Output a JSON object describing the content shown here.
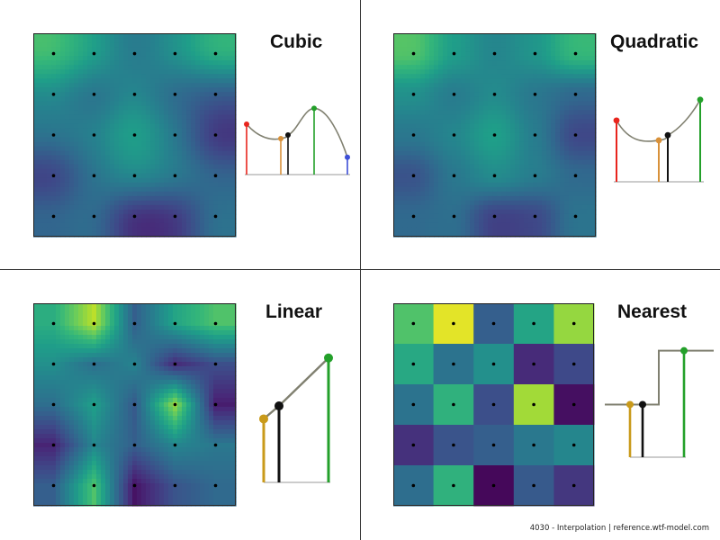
{
  "panels": {
    "cubic": {
      "title": "Cubic",
      "samples": [
        {
          "color": "#e8251d",
          "value": 0.7
        },
        {
          "color": "#d8913a",
          "value": 0.5
        },
        {
          "color": "#111111",
          "value": 0.55
        },
        {
          "color": "#23a02a",
          "value": 0.92
        },
        {
          "color": "#3d4fd6",
          "value": 0.24
        }
      ]
    },
    "quadratic": {
      "title": "Quadratic",
      "samples": [
        {
          "color": "#e8251d",
          "value": 0.71
        },
        {
          "color": "#d8913a",
          "value": 0.48
        },
        {
          "color": "#111111",
          "value": 0.54
        },
        {
          "color": "#23a02a",
          "value": 0.95
        }
      ]
    },
    "linear": {
      "title": "Linear",
      "samples": [
        {
          "color": "#c99a1a",
          "value": 0.49
        },
        {
          "color": "#111111",
          "value": 0.59
        },
        {
          "color": "#23a02a",
          "value": 0.96
        }
      ]
    },
    "nearest": {
      "title": "Nearest",
      "samples": [
        {
          "color": "#c99a1a",
          "value": 0.48
        },
        {
          "color": "#111111",
          "value": 0.48
        },
        {
          "color": "#23a02a",
          "value": 0.97
        }
      ]
    }
  },
  "heatmaps": {
    "cubic": [
      [
        0.68,
        0.55,
        0.42,
        0.5,
        0.62
      ],
      [
        0.48,
        0.4,
        0.46,
        0.36,
        0.3
      ],
      [
        0.38,
        0.44,
        0.55,
        0.4,
        0.18
      ],
      [
        0.22,
        0.38,
        0.46,
        0.4,
        0.32
      ],
      [
        0.32,
        0.34,
        0.16,
        0.18,
        0.36
      ]
    ],
    "quadratic": [
      [
        0.72,
        0.55,
        0.46,
        0.52,
        0.66
      ],
      [
        0.5,
        0.42,
        0.48,
        0.4,
        0.34
      ],
      [
        0.4,
        0.46,
        0.56,
        0.42,
        0.22
      ],
      [
        0.26,
        0.4,
        0.48,
        0.42,
        0.34
      ],
      [
        0.34,
        0.36,
        0.2,
        0.22,
        0.38
      ]
    ],
    "linear": [
      [
        0.62,
        0.9,
        0.3,
        0.58,
        0.72
      ],
      [
        0.5,
        0.36,
        0.45,
        0.12,
        0.24
      ],
      [
        0.36,
        0.56,
        0.28,
        0.85,
        0.08
      ],
      [
        0.1,
        0.46,
        0.3,
        0.46,
        0.4
      ],
      [
        0.3,
        0.72,
        0.05,
        0.26,
        0.34
      ]
    ],
    "nearest": [
      [
        0.72,
        0.96,
        0.3,
        0.58,
        0.84
      ],
      [
        0.6,
        0.38,
        0.5,
        0.12,
        0.22
      ],
      [
        0.38,
        0.64,
        0.24,
        0.86,
        0.04
      ],
      [
        0.14,
        0.26,
        0.3,
        0.4,
        0.46
      ],
      [
        0.36,
        0.64,
        0.02,
        0.28,
        0.16
      ]
    ]
  },
  "footer": "4030 - Interpolation | reference.wtf-model.com"
}
